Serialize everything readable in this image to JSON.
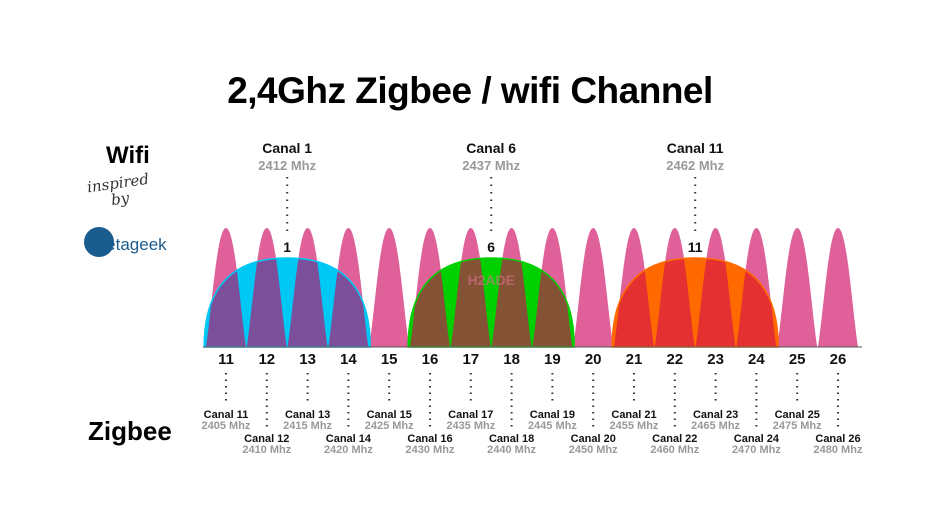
{
  "title": "2,4Ghz Zigbee / wifi Channel",
  "wifi_label": "Wifi",
  "zigbee_label": "Zigbee",
  "logo": {
    "inspired": "inspired",
    "by": "by",
    "brand": "metageek"
  },
  "watermark": "H2ADE",
  "colors": {
    "zigbee": "#e0609a",
    "wifi1": "#00c8f5",
    "wifi6": "#00d000",
    "wifi11": "#ff6a00",
    "overlap1": "#7b4f99",
    "overlap6": "#845234",
    "overlap11": "#e43030"
  },
  "wifi_channels": [
    {
      "number": "1",
      "label": "Canal 1",
      "freq": "2412 Mhz"
    },
    {
      "number": "6",
      "label": "Canal 6",
      "freq": "2437 Mhz"
    },
    {
      "number": "11",
      "label": "Canal 11",
      "freq": "2462 Mhz"
    }
  ],
  "zigbee_channels": [
    {
      "number": "11",
      "label": "Canal 11",
      "freq": "2405 Mhz"
    },
    {
      "number": "12",
      "label": "Canal 12",
      "freq": "2410 Mhz"
    },
    {
      "number": "13",
      "label": "Canal 13",
      "freq": "2415 Mhz"
    },
    {
      "number": "14",
      "label": "Canal 14",
      "freq": "2420 Mhz"
    },
    {
      "number": "15",
      "label": "Canal 15",
      "freq": "2425 Mhz"
    },
    {
      "number": "16",
      "label": "Canal 16",
      "freq": "2430 Mhz"
    },
    {
      "number": "17",
      "label": "Canal 17",
      "freq": "2435 Mhz"
    },
    {
      "number": "18",
      "label": "Canal 18",
      "freq": "2440 Mhz"
    },
    {
      "number": "19",
      "label": "Canal 19",
      "freq": "2445 Mhz"
    },
    {
      "number": "20",
      "label": "Canal 20",
      "freq": "2450 Mhz"
    },
    {
      "number": "21",
      "label": "Canal 21",
      "freq": "2455 Mhz"
    },
    {
      "number": "22",
      "label": "Canal 22",
      "freq": "2460 Mhz"
    },
    {
      "number": "23",
      "label": "Canal 23",
      "freq": "2465 Mhz"
    },
    {
      "number": "24",
      "label": "Canal 24",
      "freq": "2470 Mhz"
    },
    {
      "number": "25",
      "label": "Canal 25",
      "freq": "2475 Mhz"
    },
    {
      "number": "26",
      "label": "Canal 26",
      "freq": "2480 Mhz"
    }
  ]
}
